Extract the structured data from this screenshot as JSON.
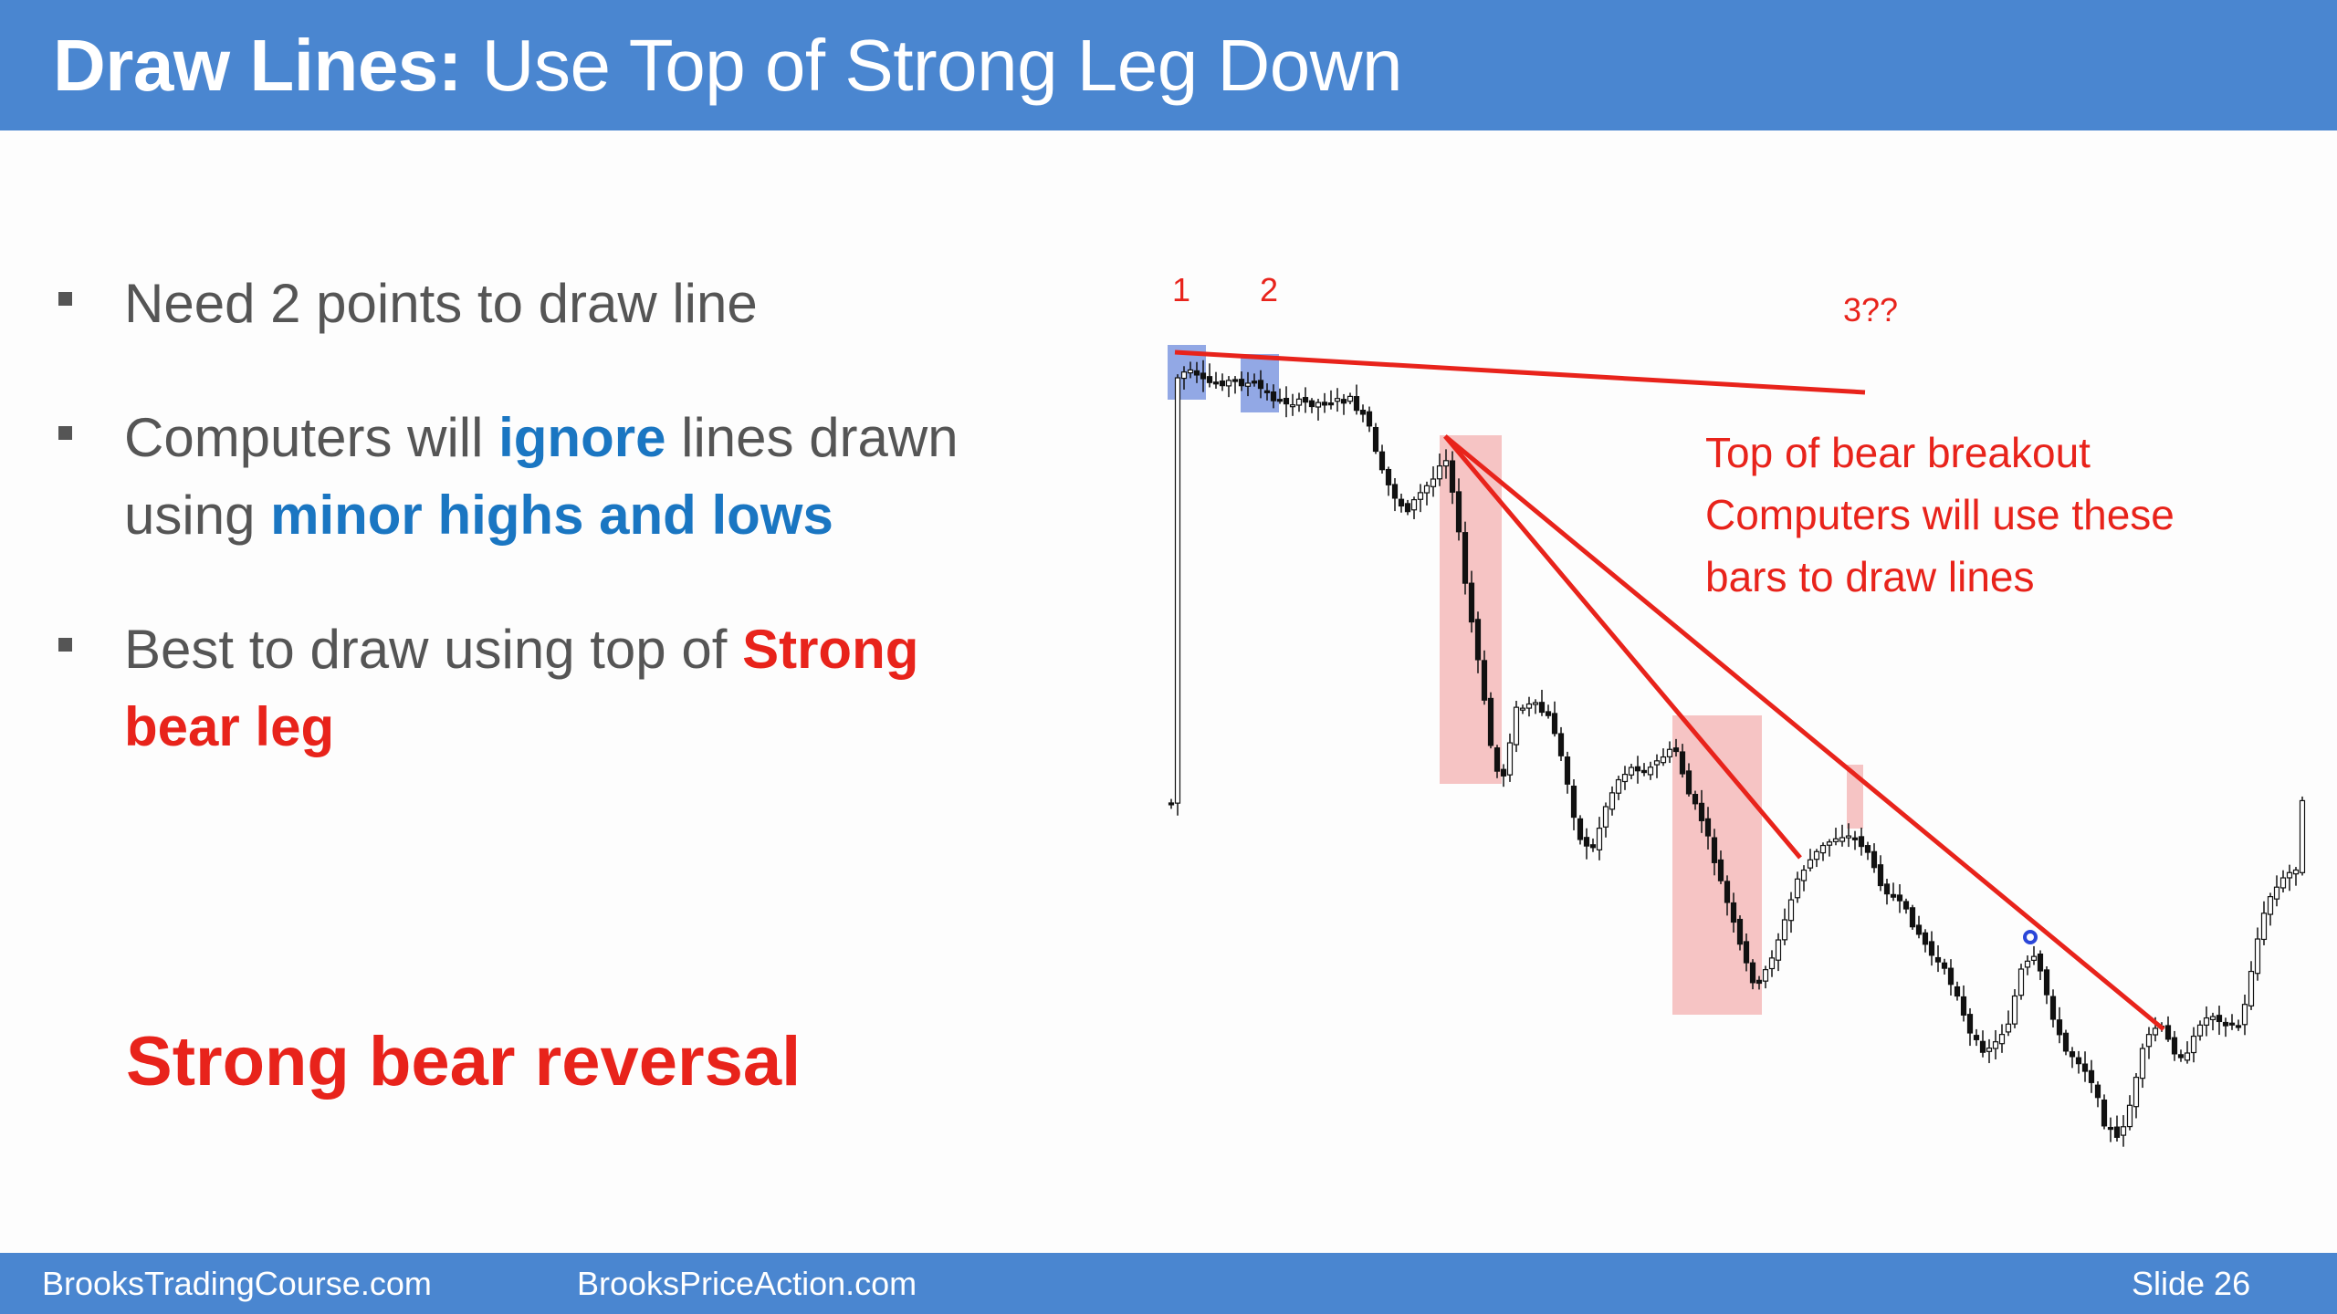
{
  "slide": {
    "title_bold": "Draw Lines:",
    "title_rest": " Use Top of Strong Leg Down"
  },
  "bullets": {
    "b1": "Need 2 points to draw line",
    "b2_part1": "Computers will ",
    "b2_hl1": "ignore",
    "b2_part2": " lines drawn using ",
    "b2_hl2": "minor highs and lows",
    "b3_part1": "Best to draw using top of ",
    "b3_hl": "Strong bear leg"
  },
  "reversal_label": "Strong bear reversal",
  "chart_annotations": {
    "label_1": "1",
    "label_2": "2",
    "label_3": "3??",
    "note_line1": "Top of bear breakout",
    "note_line2": "Computers will use these",
    "note_line3": "bars to draw lines"
  },
  "colors": {
    "header_blue": "#4a86d0",
    "accent_red": "#e8231b",
    "accent_blue": "#1a76c2",
    "highlight_pink": "#f6c4c4",
    "highlight_blue": "#7f99e0"
  },
  "footer": {
    "left": "BrooksTradingCourse.com",
    "middle": "BrooksPriceAction.com",
    "slide": "Slide  26"
  }
}
